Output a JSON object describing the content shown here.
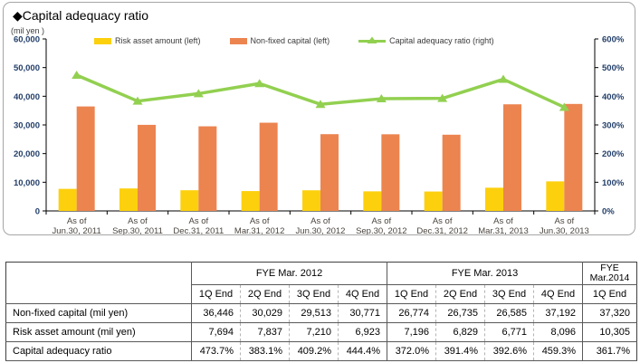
{
  "chart": {
    "title": "◆Capital adequacy ratio",
    "unit_label": "(mil yen )"
  },
  "chart_data": {
    "type": "combo-bar-line",
    "x_prefix": "As of",
    "categories": [
      "Jun.30, 2011",
      "Sep.30, 2011",
      "Dec.31, 2011",
      "Mar.31, 2012",
      "Jun.30, 2012",
      "Sep.30, 2012",
      "Dec.31, 2012",
      "Mar.31, 2013",
      "Jun.30, 2013"
    ],
    "series": [
      {
        "name": "Risk asset amount (left)",
        "type": "bar",
        "axis": "left",
        "color": "#FCD00D",
        "values": [
          7694,
          7837,
          7210,
          6923,
          7196,
          6829,
          6771,
          8096,
          10305
        ]
      },
      {
        "name": "Non-fixed capital (left)",
        "type": "bar",
        "axis": "left",
        "color": "#EC8450",
        "values": [
          36446,
          30029,
          29513,
          30771,
          26774,
          26735,
          26585,
          37192,
          37320
        ]
      },
      {
        "name": "Capital adequacy ratio (right)",
        "type": "line",
        "axis": "right",
        "color": "#92D050",
        "values": [
          473.7,
          383.1,
          409.2,
          444.4,
          372.0,
          391.4,
          392.6,
          459.3,
          361.7
        ]
      }
    ],
    "left_axis": {
      "min": 0,
      "max": 60000,
      "step": 10000,
      "tick_labels": [
        "0",
        "10,000",
        "20,000",
        "30,000",
        "40,000",
        "50,000",
        "60,000"
      ]
    },
    "right_axis": {
      "min": 0,
      "max": 600,
      "step": 100,
      "tick_labels": [
        "0%",
        "100%",
        "200%",
        "300%",
        "400%",
        "500%",
        "600%"
      ]
    },
    "grid": false,
    "legend_position": "top"
  },
  "table": {
    "corner_label": "",
    "col_groups": [
      {
        "label": "FYE Mar. 2012",
        "span": 4
      },
      {
        "label": "FYE Mar. 2013",
        "span": 4
      },
      {
        "label": "FYE Mar.2014",
        "span": 1,
        "two_line": [
          "FYE",
          "Mar.2014"
        ]
      }
    ],
    "sub_headers": [
      "1Q End",
      "2Q End",
      "3Q End",
      "4Q End",
      "1Q End",
      "2Q End",
      "3Q End",
      "4Q End",
      "1Q End"
    ],
    "rows": [
      {
        "label": "Non-fixed capital (mil yen)",
        "values": [
          "36,446",
          "30,029",
          "29,513",
          "30,771",
          "26,774",
          "26,735",
          "26,585",
          "37,192",
          "37,320"
        ]
      },
      {
        "label": "Risk asset amount (mil yen)",
        "values": [
          "7,694",
          "7,837",
          "7,210",
          "6,923",
          "7,196",
          "6,829",
          "6,771",
          "8,096",
          "10,305"
        ]
      },
      {
        "label": "Capital adequacy ratio",
        "values": [
          "473.7%",
          "383.1%",
          "409.2%",
          "444.4%",
          "372.0%",
          "391.4%",
          "392.6%",
          "459.3%",
          "361.7%"
        ]
      }
    ]
  }
}
